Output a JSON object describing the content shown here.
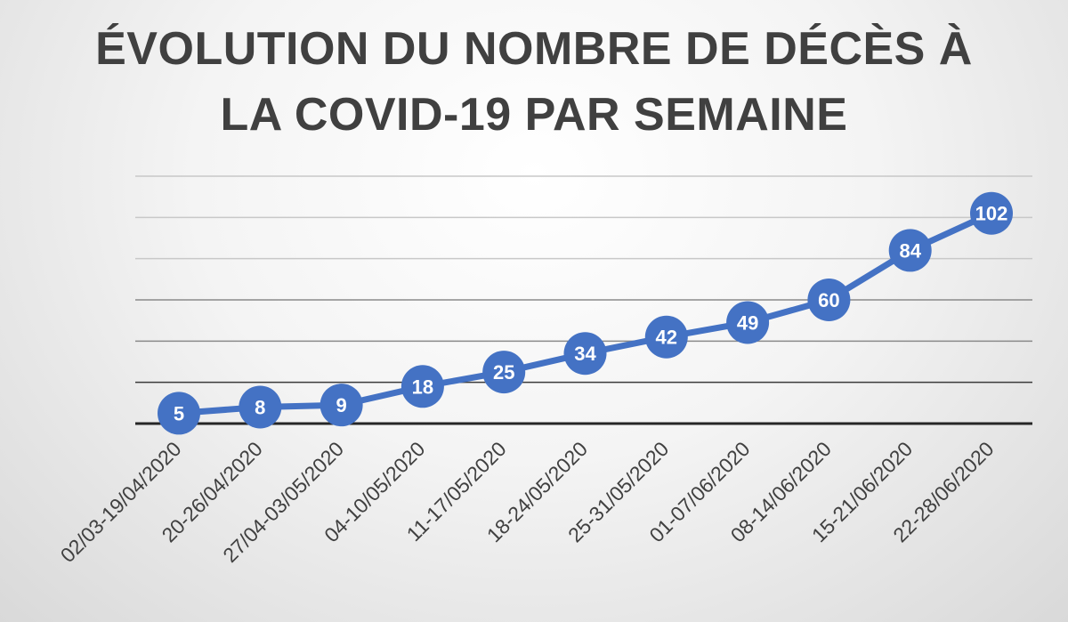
{
  "chart_data": {
    "type": "line",
    "title_lines": [
      "ÉVOLUTION DU NOMBRE DE DÉCÈS À",
      "LA COVID-19 PAR SEMAINE"
    ],
    "categories": [
      "02/03-19/04/2020",
      "20-26/04/2020",
      "27/04-03/05/2020",
      "04-10/05/2020",
      "11-17/05/2020",
      "18-24/05/2020",
      "25-31/05/2020",
      "01-07/06/2020",
      "08-14/06/2020",
      "15-21/06/2020",
      "22-28/06/2020"
    ],
    "values": [
      5,
      8,
      9,
      18,
      25,
      34,
      42,
      49,
      60,
      84,
      102
    ],
    "data_labels": [
      "5",
      "8",
      "9",
      "18",
      "25",
      "34",
      "42",
      "49",
      "60",
      "84",
      "102"
    ],
    "ylim": [
      0,
      120
    ],
    "grid": true,
    "legend": "none",
    "colors": {
      "line": "#4472C4",
      "marker": "#4472C4",
      "grid": "#c8c8c8",
      "axis": "#262626",
      "text": "#404040"
    }
  }
}
